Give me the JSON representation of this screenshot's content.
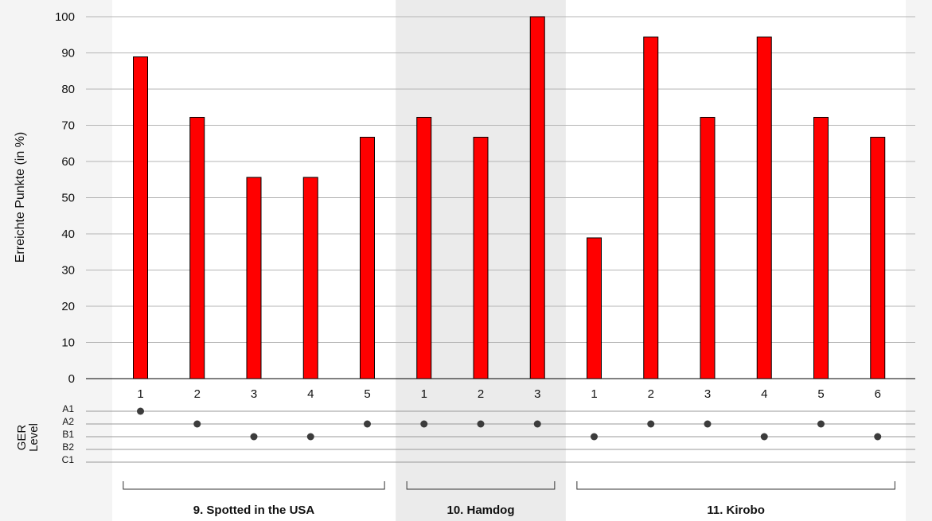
{
  "chart_data": {
    "type": "bar",
    "ylabel": "Erreichte Punkte (in %)",
    "ylim": [
      0,
      100
    ],
    "yticks": [
      0,
      10,
      20,
      30,
      40,
      50,
      60,
      70,
      80,
      90,
      100
    ],
    "grid": true,
    "bar_color": "#ff0000",
    "shaded_group_color": "#ebebeb",
    "categories": [
      "1",
      "2",
      "3",
      "4",
      "5",
      "1",
      "2",
      "3",
      "1",
      "2",
      "3",
      "4",
      "5",
      "6"
    ],
    "values": [
      88.9,
      72.2,
      55.6,
      55.6,
      66.7,
      72.2,
      66.7,
      100,
      38.9,
      94.4,
      72.2,
      94.4,
      72.2,
      66.7
    ],
    "groups": [
      {
        "label": "9. Spotted in the USA",
        "count": 5
      },
      {
        "label": "10. Hamdog",
        "count": 3,
        "shaded": true
      },
      {
        "label": "11. Kirobo",
        "count": 6
      }
    ],
    "level_axis": {
      "title_line1": "GER",
      "title_line2": "Level",
      "levels": [
        "A1",
        "A2",
        "B1",
        "B2",
        "C1"
      ],
      "values": [
        "A1",
        "A2",
        "B1",
        "B1",
        "A2",
        "A2",
        "A2",
        "A2",
        "B1",
        "A2",
        "A2",
        "B1",
        "A2",
        "B1"
      ]
    }
  }
}
